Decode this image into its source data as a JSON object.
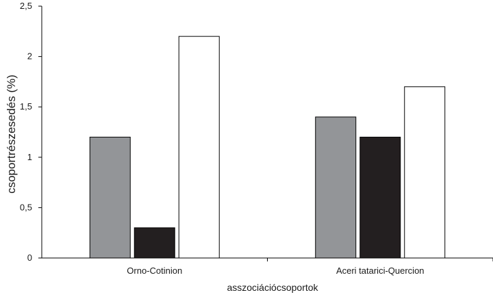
{
  "chart_data": {
    "type": "bar",
    "title": "",
    "xlabel": "asszociációcsoportok",
    "ylabel": "csoportrészesedés (%)",
    "categories": [
      "Orno-Cotinion",
      "Aceri tatarici-Quercion"
    ],
    "series": [
      {
        "values": [
          1.2,
          1.4
        ],
        "color": "#939598"
      },
      {
        "values": [
          0.3,
          1.2
        ],
        "color": "#231f20"
      },
      {
        "values": [
          2.2,
          1.7
        ],
        "color": "#ffffff"
      }
    ],
    "ylim": [
      0,
      2.5
    ],
    "yticks": [
      {
        "value": 0,
        "label": "0"
      },
      {
        "value": 0.5,
        "label": "0,5"
      },
      {
        "value": 1,
        "label": "1"
      },
      {
        "value": 1.5,
        "label": "1,5"
      },
      {
        "value": 2,
        "label": "2"
      },
      {
        "value": 2.5,
        "label": "2,5"
      }
    ],
    "grid": false,
    "legend": "none"
  }
}
